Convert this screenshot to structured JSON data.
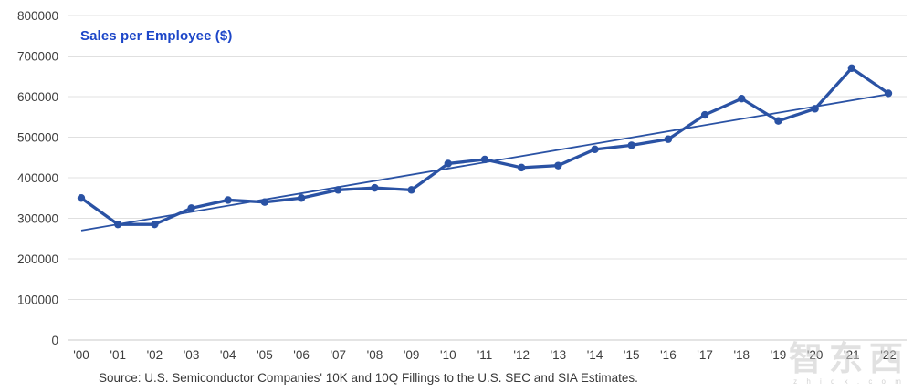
{
  "header": {
    "title": "Sales per Employee ($)"
  },
  "source_note": "Source: U.S. Semiconductor Companies' 10K and 10Q Fillings to the U.S. SEC and SIA Estimates.",
  "watermark": {
    "text": "智东西",
    "subtext": "z h i d x . c o m"
  },
  "colors": {
    "title": "#1C46C8",
    "series_line": "#2A52A4",
    "trend_line": "#2A52A4",
    "gridline": "#E0E0E0",
    "zero_line": "#C9C9C9",
    "axis_label": "#3D3D3D",
    "source_text": "#383838",
    "watermark": "#C9C9C9"
  },
  "chart_data": {
    "type": "line",
    "title": "Sales per Employee ($)",
    "xlabel": "",
    "ylabel": "",
    "categories": [
      "'00",
      "'01",
      "'02",
      "'03",
      "'04",
      "'05",
      "'06",
      "'07",
      "'08",
      "'09",
      "'10",
      "'11",
      "'12",
      "'13",
      "'14",
      "'15",
      "'16",
      "'17",
      "'18",
      "'19",
      "'20",
      "'21",
      "'22"
    ],
    "series": [
      {
        "name": "Sales per Employee ($)",
        "style": "line-with-markers",
        "values": [
          350000,
          285000,
          285000,
          325000,
          345000,
          340000,
          350000,
          370000,
          375000,
          370000,
          435000,
          445000,
          425000,
          430000,
          470000,
          480000,
          495000,
          555000,
          595000,
          540000,
          570000,
          670000,
          608000
        ]
      },
      {
        "name": "Linear trend",
        "style": "trendline",
        "start_value": 270000,
        "end_value": 606000
      }
    ],
    "ylim": [
      0,
      800000
    ],
    "ytick_step": 100000,
    "ytick_labels": [
      "0",
      "100000",
      "200000",
      "300000",
      "400000",
      "500000",
      "600000",
      "700000",
      "800000"
    ],
    "grid": "horizontal",
    "legend_position": "none",
    "markers": true
  }
}
